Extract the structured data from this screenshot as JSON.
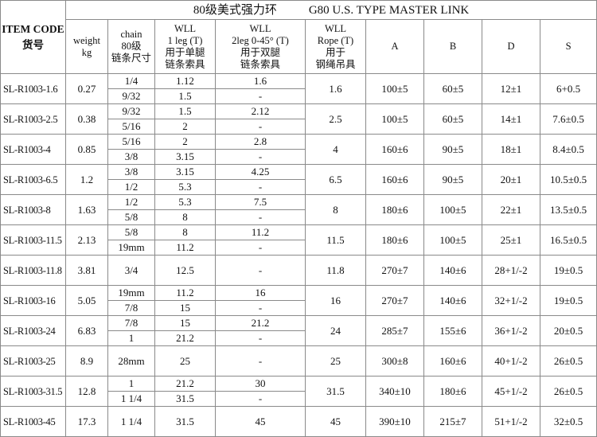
{
  "title_cn": "80级美式强力环",
  "title_en": "G80 U.S. TYPE  MASTER LINK",
  "headers": {
    "item_code": [
      "ITEM CODE",
      "货号"
    ],
    "weight": [
      "weight",
      "kg"
    ],
    "chain": [
      "chain",
      "80级",
      "链条尺寸"
    ],
    "wll_1leg": [
      "WLL",
      "1 leg (T)",
      "用于单腿",
      "链条索具"
    ],
    "wll_2leg": [
      "WLL",
      "2leg 0-45° (T)",
      "用于双腿",
      "链条索具"
    ],
    "wll_rope": [
      "WLL",
      "Rope (T)",
      "用于",
      "钢绳吊具"
    ],
    "a": "A",
    "b": "B",
    "d": "D",
    "s": "S"
  },
  "rows": [
    {
      "code": "SL-R1003-1.6",
      "weight": "0.27",
      "sub": [
        [
          "1/4",
          "1.12",
          "1.6"
        ],
        [
          "9/32",
          "1.5",
          "-"
        ]
      ],
      "rope": "1.6",
      "a": "100±5",
      "b": "60±5",
      "d": "12±1",
      "s": "6+0.5"
    },
    {
      "code": "SL-R1003-2.5",
      "weight": "0.38",
      "sub": [
        [
          "9/32",
          "1.5",
          "2.12"
        ],
        [
          "5/16",
          "2",
          "-"
        ]
      ],
      "rope": "2.5",
      "a": "100±5",
      "b": "60±5",
      "d": "14±1",
      "s": "7.6±0.5"
    },
    {
      "code": "SL-R1003-4",
      "weight": "0.85",
      "sub": [
        [
          "5/16",
          "2",
          "2.8"
        ],
        [
          "3/8",
          "3.15",
          "-"
        ]
      ],
      "rope": "4",
      "a": "160±6",
      "b": "90±5",
      "d": "18±1",
      "s": "8.4±0.5"
    },
    {
      "code": "SL-R1003-6.5",
      "weight": "1.2",
      "sub": [
        [
          "3/8",
          "3.15",
          "4.25"
        ],
        [
          "1/2",
          "5.3",
          "-"
        ]
      ],
      "rope": "6.5",
      "a": "160±6",
      "b": "90±5",
      "d": "20±1",
      "s": "10.5±0.5"
    },
    {
      "code": "SL-R1003-8",
      "weight": "1.63",
      "sub": [
        [
          "1/2",
          "5.3",
          "7.5"
        ],
        [
          "5/8",
          "8",
          "-"
        ]
      ],
      "rope": "8",
      "a": "180±6",
      "b": "100±5",
      "d": "22±1",
      "s": "13.5±0.5"
    },
    {
      "code": "SL-R1003-11.5",
      "weight": "2.13",
      "sub": [
        [
          "5/8",
          "8",
          "11.2"
        ],
        [
          "19mm",
          "11.2",
          "-"
        ]
      ],
      "rope": "11.5",
      "a": "180±6",
      "b": "100±5",
      "d": "25±1",
      "s": "16.5±0.5"
    },
    {
      "code": "SL-R1003-11.8",
      "weight": "3.81",
      "sub": [
        [
          "3/4",
          "12.5",
          "-"
        ]
      ],
      "rope": "11.8",
      "a": "270±7",
      "b": "140±6",
      "d": "28+1/-2",
      "s": "19±0.5"
    },
    {
      "code": "SL-R1003-16",
      "weight": "5.05",
      "sub": [
        [
          "19mm",
          "11.2",
          "16"
        ],
        [
          "7/8",
          "15",
          "-"
        ]
      ],
      "rope": "16",
      "a": "270±7",
      "b": "140±6",
      "d": "32+1/-2",
      "s": "19±0.5"
    },
    {
      "code": "SL-R1003-24",
      "weight": "6.83",
      "sub": [
        [
          "7/8",
          "15",
          "21.2"
        ],
        [
          "1",
          "21.2",
          "-"
        ]
      ],
      "rope": "24",
      "a": "285±7",
      "b": "155±6",
      "d": "36+1/-2",
      "s": "20±0.5"
    },
    {
      "code": "SL-R1003-25",
      "weight": "8.9",
      "sub": [
        [
          "28mm",
          "25",
          "-"
        ]
      ],
      "rope": "25",
      "a": "300±8",
      "b": "160±6",
      "d": "40+1/-2",
      "s": "26±0.5"
    },
    {
      "code": "SL-R1003-31.5",
      "weight": "12.8",
      "sub": [
        [
          "1",
          "21.2",
          "30"
        ],
        [
          "1 1/4",
          "31.5",
          "-"
        ]
      ],
      "rope": "31.5",
      "a": "340±10",
      "b": "180±6",
      "d": "45+1/-2",
      "s": "26±0.5"
    },
    {
      "code": "SL-R1003-45",
      "weight": "17.3",
      "sub": [
        [
          "1 1/4",
          "31.5",
          "45"
        ]
      ],
      "rope": "45",
      "a": "390±10",
      "b": "215±7",
      "d": "51+1/-2",
      "s": "32±0.5"
    }
  ]
}
